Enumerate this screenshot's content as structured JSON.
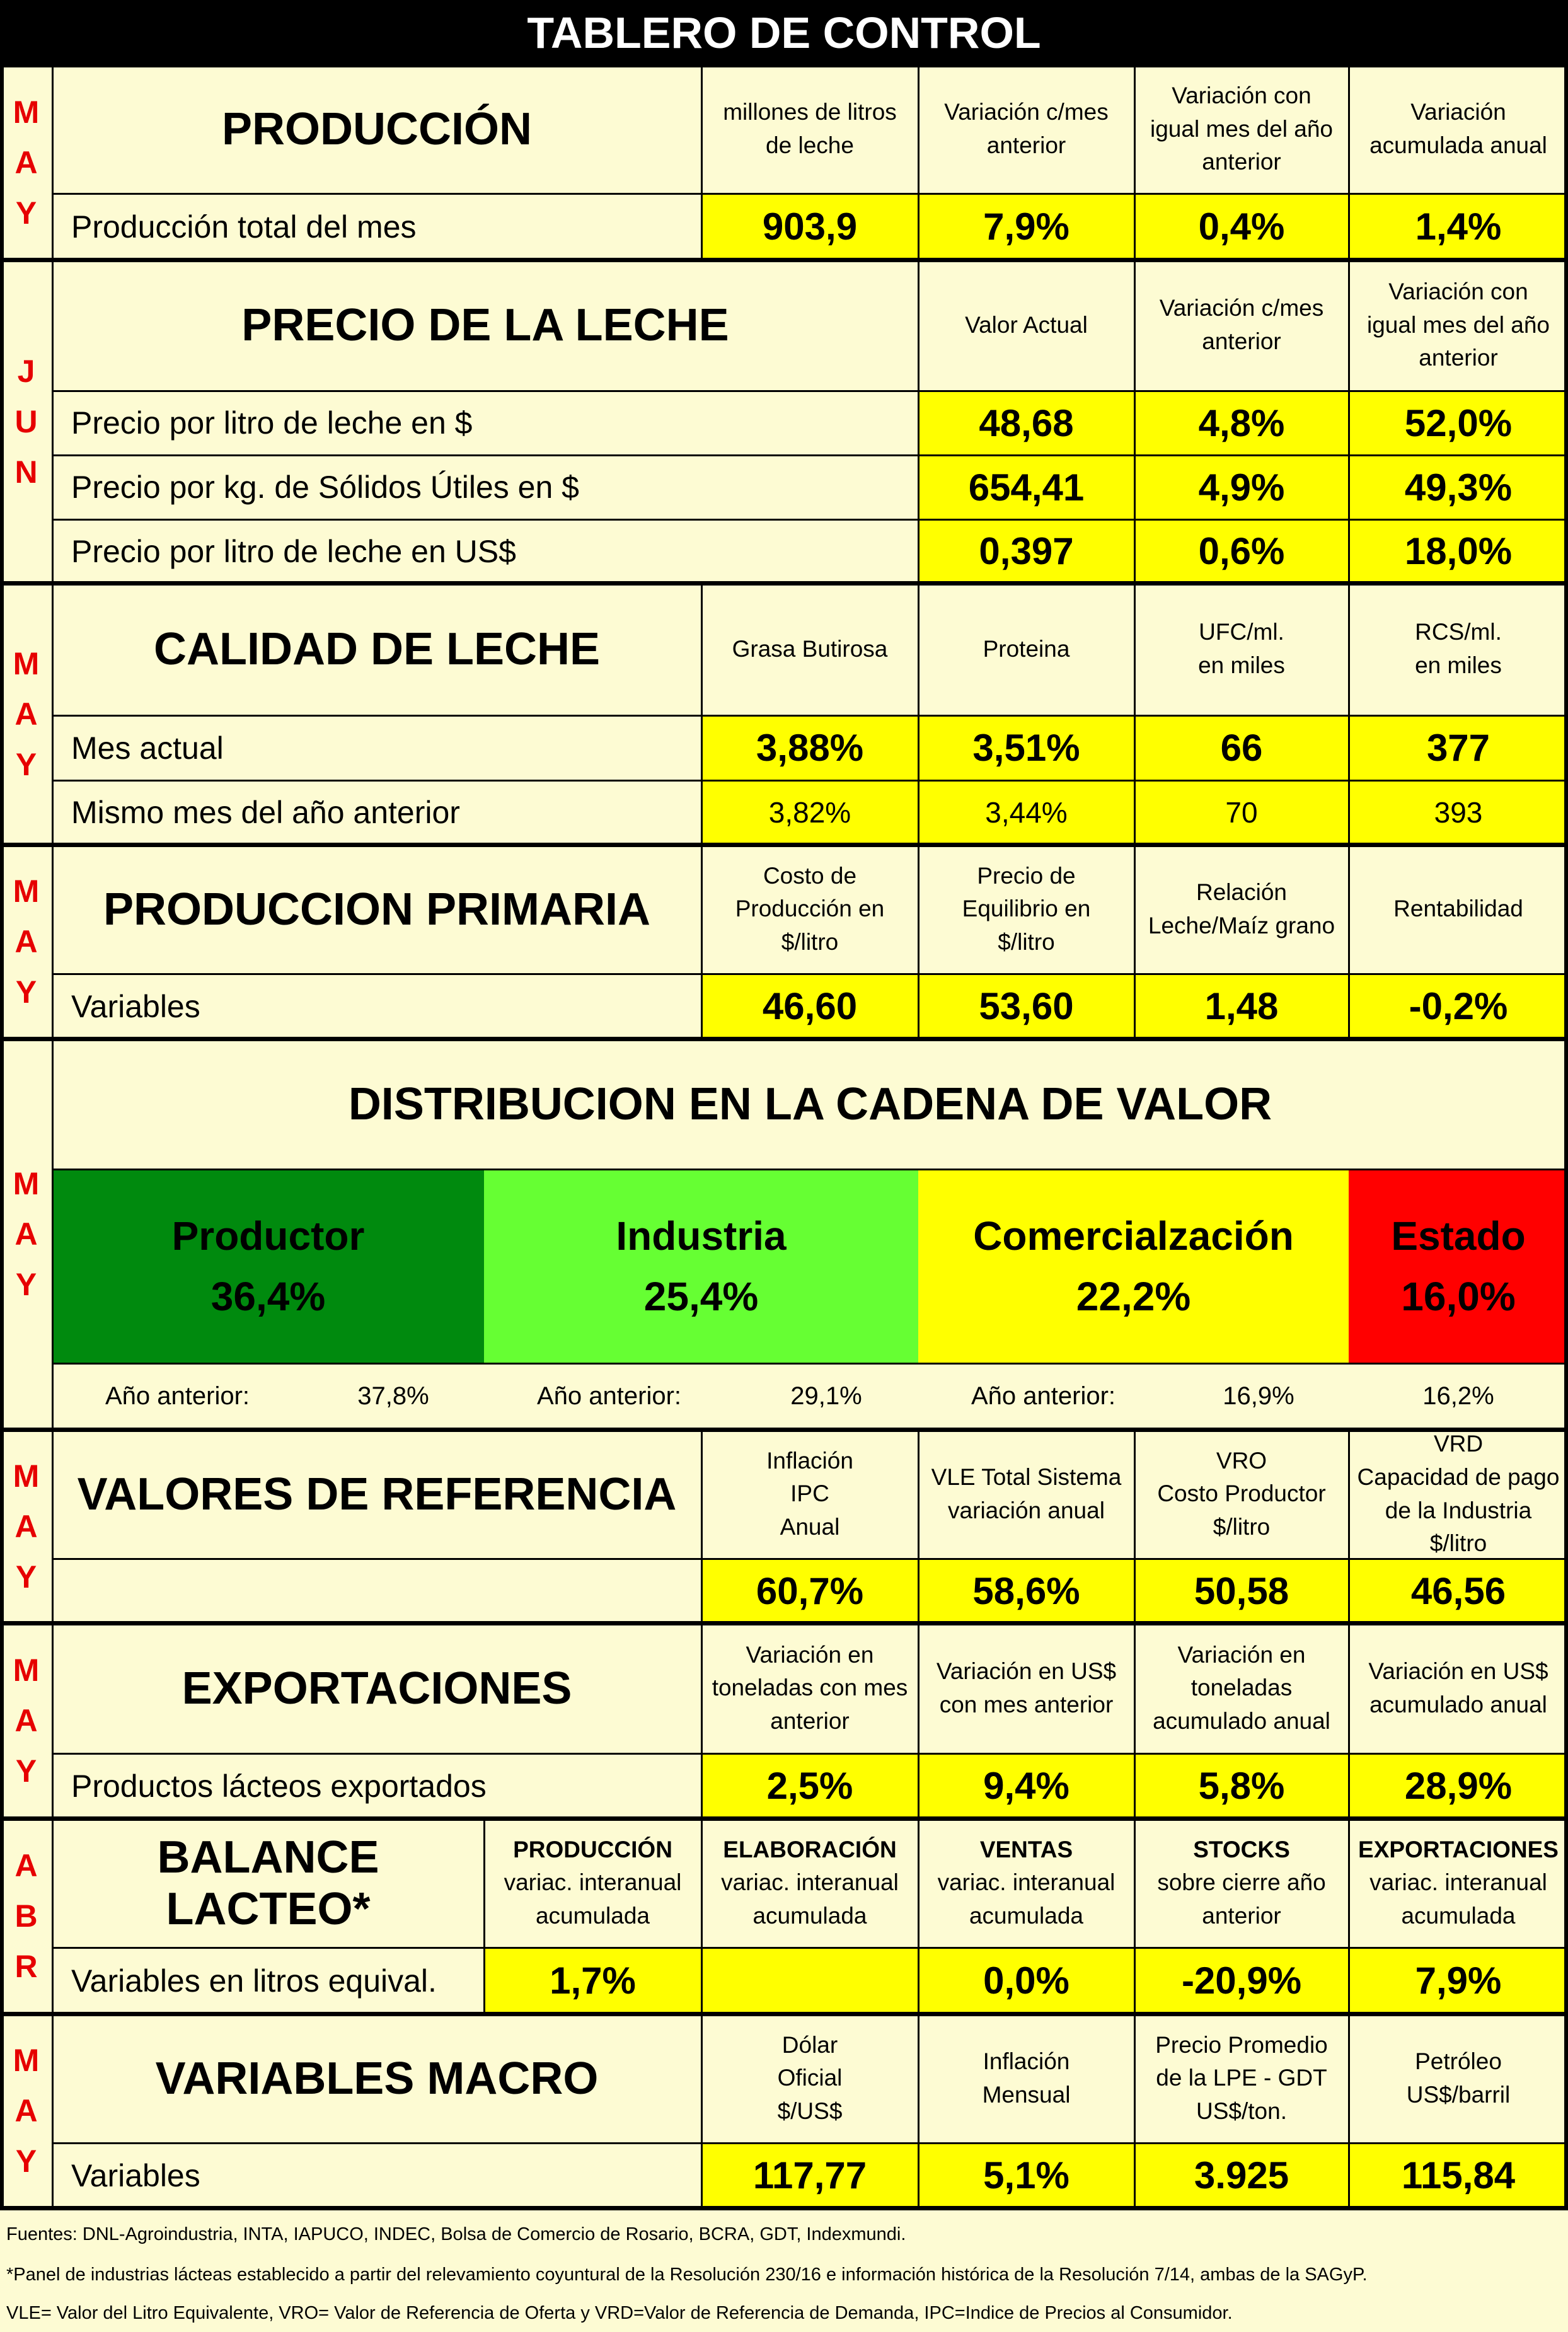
{
  "title": "TABLERO DE CONTROL",
  "produccion": {
    "month": [
      "M",
      "A",
      "Y"
    ],
    "title": "PRODUCCIÓN",
    "headers": [
      "millones de litros\nde leche",
      "Variación c/mes\nanterior",
      "Variación con\nigual mes del año\nanterior",
      "Variación\nacumulada anual"
    ],
    "row_label": "Producción total del mes",
    "values": [
      "903,9",
      "7,9%",
      "0,4%",
      "1,4%"
    ]
  },
  "precio": {
    "month": [
      "J",
      "U",
      "N"
    ],
    "title": "PRECIO DE LA LECHE",
    "headers": [
      "Valor Actual",
      "Variación c/mes\nanterior",
      "Variación con\nigual mes del año\nanterior"
    ],
    "rows": [
      {
        "label": "Precio por litro de leche en $",
        "values": [
          "48,68",
          "4,8%",
          "52,0%"
        ]
      },
      {
        "label": "Precio por kg. de Sólidos Útiles en $",
        "values": [
          "654,41",
          "4,9%",
          "49,3%"
        ]
      },
      {
        "label": "Precio por litro de leche en US$",
        "values": [
          "0,397",
          "0,6%",
          "18,0%"
        ]
      }
    ]
  },
  "calidad": {
    "month": [
      "M",
      "A",
      "Y"
    ],
    "title": "CALIDAD DE LECHE",
    "headers": [
      "Grasa Butirosa",
      "Proteina",
      "UFC/ml.\nen miles",
      "RCS/ml.\nen miles"
    ],
    "rows": [
      {
        "label": "Mes actual",
        "values": [
          "3,88%",
          "3,51%",
          "66",
          "377"
        ]
      },
      {
        "label": "Mismo mes del año anterior",
        "values": [
          "3,82%",
          "3,44%",
          "70",
          "393"
        ]
      }
    ]
  },
  "primaria": {
    "month": [
      "M",
      "A",
      "Y"
    ],
    "title": "PRODUCCION PRIMARIA",
    "headers": [
      "Costo de\nProducción en\n$/litro",
      "Precio de\nEquilibrio en\n$/litro",
      "Relación\nLeche/Maíz grano",
      "Rentabilidad"
    ],
    "row_label": "Variables",
    "values": [
      "46,60",
      "53,60",
      "1,48",
      "-0,2%"
    ]
  },
  "distribucion": {
    "month": [
      "M",
      "A",
      "Y"
    ],
    "title": "DISTRIBUCION EN LA CADENA DE VALOR",
    "colors": {
      "productor": "#008a0e",
      "industria": "#66ff33",
      "comercializacion": "#ffff00",
      "estado": "#ff0000"
    },
    "boxes": [
      {
        "name": "Productor",
        "value": "36,4%"
      },
      {
        "name": "Industria",
        "value": "25,4%"
      },
      {
        "name": "Comercialzación",
        "value": "22,2%"
      },
      {
        "name": "Estado",
        "value": "16,0%"
      }
    ],
    "prev_label": "Año anterior:",
    "prev_values": [
      "37,8%",
      "29,1%",
      "16,9%",
      "16,2%"
    ]
  },
  "referencia": {
    "month": [
      "M",
      "A",
      "Y"
    ],
    "title": "VALORES DE REFERENCIA",
    "headers": [
      "Inflación\nIPC\nAnual",
      "VLE Total Sistema\nvariación anual",
      "VRO\nCosto Productor\n$/litro",
      "VRD\nCapacidad de pago\nde la Industria\n$/litro"
    ],
    "values": [
      "60,7%",
      "58,6%",
      "50,58",
      "46,56"
    ]
  },
  "exportaciones": {
    "month": [
      "M",
      "A",
      "Y"
    ],
    "title": "EXPORTACIONES",
    "headers": [
      "Variación en\ntoneladas con mes\nanterior",
      "Variación en US$\ncon mes anterior",
      "Variación en\ntoneladas\nacumulado anual",
      "Variación en US$\nacumulado anual"
    ],
    "row_label": "Productos lácteos exportados",
    "values": [
      "2,5%",
      "9,4%",
      "5,8%",
      "28,9%"
    ]
  },
  "balance": {
    "month": [
      "A",
      "B",
      "R"
    ],
    "title": "BALANCE LACTEO*",
    "headers": [
      {
        "bold": "PRODUCCIÓN",
        "sub": "variac. interanual\nacumulada"
      },
      {
        "bold": "ELABORACIÓN",
        "sub": "variac. interanual\nacumulada"
      },
      {
        "bold": "VENTAS",
        "sub": "variac. interanual\nacumulada"
      },
      {
        "bold": "STOCKS",
        "sub": "sobre cierre año\nanterior"
      },
      {
        "bold": "EXPORTACIONES",
        "sub": "variac. interanual\nacumulada"
      }
    ],
    "row_label": "Variables en litros equival.",
    "values": [
      "1,7%",
      "",
      "0,0%",
      "-20,9%",
      "7,9%"
    ]
  },
  "macro": {
    "month": [
      "M",
      "A",
      "Y"
    ],
    "title": "VARIABLES MACRO",
    "headers": [
      "Dólar\nOficial\n$/US$",
      "Inflación\nMensual",
      "Precio Promedio\nde la LPE - GDT\nUS$/ton.",
      "Petróleo\nUS$/barril"
    ],
    "row_label": "Variables",
    "values": [
      "117,77",
      "5,1%",
      "3.925",
      "115,84"
    ]
  },
  "footnotes": [
    "Fuentes: DNL-Agroindustria, INTA, IAPUCO, INDEC, Bolsa de Comercio de Rosario, BCRA, GDT, Indexmundi.",
    "*Panel de industrias lácteas establecido a partir del relevamiento coyuntural de la Resolución 230/16 e información histórica de la Resolución 7/14, ambas de la SAGyP.",
    "VLE= Valor del Litro Equivalente, VRO= Valor de Referencia de Oferta y VRD=Valor de Referencia de Demanda, IPC=Indice de Precios al Consumidor."
  ]
}
